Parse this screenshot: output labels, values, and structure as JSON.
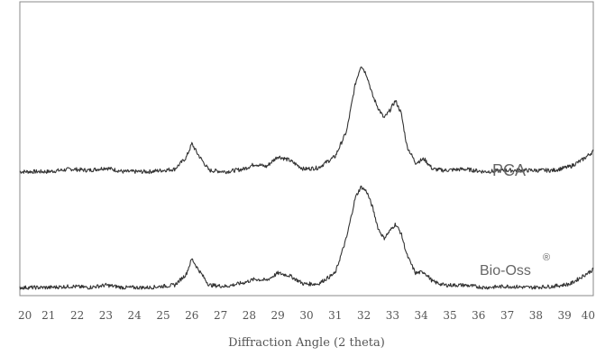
{
  "chart_data": {
    "type": "line",
    "title": "",
    "xlabel": "Diffraction Angle (2 theta)",
    "ylabel": "",
    "xlim": [
      20,
      40
    ],
    "ylim": [
      0,
      100
    ],
    "grid": false,
    "legend": "none",
    "x_ticks": [
      "20",
      "21",
      "22",
      "23",
      "24",
      "25",
      "26",
      "27",
      "28",
      "29",
      "30",
      "31",
      "32",
      "33",
      "34",
      "35",
      "36",
      "37",
      "38",
      "39",
      "40"
    ],
    "series": [
      {
        "name": "PCA",
        "color": "#333333",
        "x": [
          20,
          21,
          21.8,
          22.4,
          23,
          23.6,
          24.5,
          25.4,
          25.8,
          26,
          26.2,
          26.6,
          27.2,
          27.8,
          28.2,
          28.6,
          29,
          29.4,
          29.9,
          30.4,
          31,
          31.4,
          31.7,
          31.9,
          32.1,
          32.3,
          32.5,
          32.7,
          32.9,
          33.1,
          33.3,
          33.5,
          33.8,
          34.1,
          34.4,
          34.8,
          35.5,
          36.2,
          37,
          37.8,
          38.6,
          39.2,
          39.6,
          40
        ],
        "y": [
          16,
          16,
          18,
          17,
          19,
          16,
          16,
          18,
          27,
          38,
          30,
          17,
          16,
          18,
          22,
          20,
          28,
          25,
          18,
          19,
          28,
          48,
          85,
          100,
          92,
          76,
          66,
          58,
          64,
          72,
          62,
          36,
          23,
          26,
          18,
          17,
          18,
          16,
          17,
          17,
          17,
          20,
          25,
          32
        ]
      },
      {
        "name": "Bio-Oss",
        "color": "#333333",
        "x": [
          20,
          21,
          21.8,
          22.4,
          23,
          23.6,
          24.5,
          25.4,
          25.8,
          26,
          26.2,
          26.6,
          27.2,
          27.8,
          28.2,
          28.6,
          29,
          29.4,
          29.9,
          30.4,
          31,
          31.4,
          31.7,
          31.9,
          32.1,
          32.3,
          32.5,
          32.7,
          32.9,
          33.1,
          33.3,
          33.5,
          33.8,
          34.1,
          34.4,
          34.8,
          35.5,
          36.2,
          37,
          37.8,
          38.6,
          39.2,
          39.6,
          40
        ],
        "y": [
          3,
          3,
          4,
          3,
          5,
          3,
          3,
          5,
          14,
          27,
          19,
          5,
          4,
          7,
          10,
          9,
          15,
          13,
          6,
          6,
          15,
          45,
          78,
          87,
          83,
          70,
          52,
          44,
          50,
          56,
          48,
          30,
          15,
          16,
          8,
          5,
          5,
          3,
          4,
          3,
          4,
          6,
          12,
          18
        ]
      }
    ],
    "annotations": [
      "PCA",
      "Bio-Oss",
      "®"
    ]
  }
}
